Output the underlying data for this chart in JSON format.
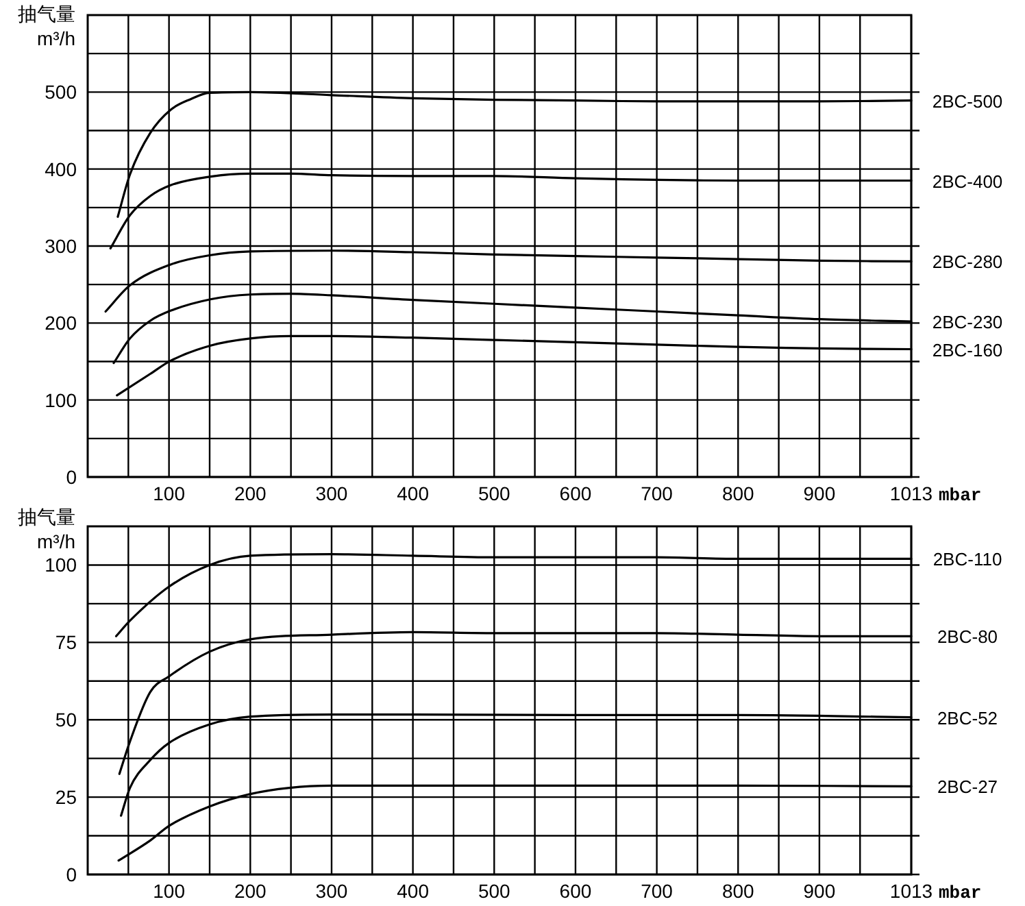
{
  "chart_data": [
    {
      "type": "line",
      "ylabel": "抽气量\nm³/h",
      "xlabel": "mbar",
      "xlim": [
        0,
        1013
      ],
      "ylim": [
        0,
        600
      ],
      "grid": true,
      "xticks": [
        {
          "value": 50,
          "label": null
        },
        100,
        {
          "value": 150,
          "label": null
        },
        200,
        {
          "value": 250,
          "label": null
        },
        300,
        {
          "value": 350,
          "label": null
        },
        400,
        {
          "value": 450,
          "label": null
        },
        500,
        {
          "value": 550,
          "label": null
        },
        600,
        {
          "value": 650,
          "label": null
        },
        700,
        {
          "value": 750,
          "label": null
        },
        800,
        {
          "value": 850,
          "label": null
        },
        900,
        {
          "value": 950,
          "label": null
        },
        1013
      ],
      "yticks": [
        0,
        {
          "value": 50,
          "label": null
        },
        100,
        {
          "value": 150,
          "label": null
        },
        200,
        {
          "value": 250,
          "label": null
        },
        300,
        {
          "value": 350,
          "label": null
        },
        400,
        {
          "value": 450,
          "label": null
        },
        500,
        {
          "value": 550,
          "label": null
        }
      ],
      "series": [
        {
          "name": "2BC-500",
          "color": "#000000",
          "x": [
            37,
            52,
            77,
            102,
            127,
            150,
            200,
            300,
            400,
            500,
            600,
            700,
            800,
            900,
            1013
          ],
          "values": [
            338,
            393,
            447,
            477,
            491,
            499,
            500,
            496,
            492,
            490,
            489,
            488,
            488,
            488,
            489
          ]
        },
        {
          "name": "2BC-400",
          "color": "#000000",
          "x": [
            28,
            52,
            77,
            102,
            150,
            200,
            250,
            300,
            400,
            500,
            600,
            700,
            800,
            900,
            1013
          ],
          "values": [
            297,
            340,
            365,
            379,
            390,
            394,
            394,
            392,
            391,
            391,
            388,
            386,
            385,
            385,
            385
          ]
        },
        {
          "name": "2BC-280",
          "color": "#000000",
          "x": [
            22,
            52,
            102,
            150,
            200,
            300,
            400,
            500,
            600,
            700,
            800,
            900,
            1013
          ],
          "values": [
            215,
            249,
            276,
            288,
            293,
            294,
            292,
            289,
            287,
            285,
            283,
            281,
            280
          ]
        },
        {
          "name": "2BC-230",
          "color": "#000000",
          "x": [
            32,
            52,
            77,
            102,
            152,
            200,
            250,
            300,
            400,
            500,
            600,
            700,
            800,
            900,
            1013
          ],
          "values": [
            148,
            180,
            203,
            216,
            231,
            237,
            238,
            236,
            230,
            225,
            220,
            215,
            210,
            205,
            202
          ]
        },
        {
          "name": "2BC-160",
          "color": "#000000",
          "x": [
            36,
            77,
            102,
            152,
            200,
            250,
            300,
            400,
            500,
            600,
            700,
            800,
            900,
            1013
          ],
          "values": [
            106,
            134,
            151,
            171,
            180,
            183,
            183,
            181,
            178,
            175,
            172,
            169,
            167,
            166
          ]
        }
      ]
    },
    {
      "type": "line",
      "ylabel": "抽气量\nm³/h",
      "xlabel": "mbar",
      "xlim": [
        0,
        1013
      ],
      "ylim": [
        0,
        112.5
      ],
      "grid": true,
      "xticks": [
        {
          "value": 50,
          "label": null
        },
        100,
        {
          "value": 150,
          "label": null
        },
        200,
        {
          "value": 250,
          "label": null
        },
        300,
        {
          "value": 350,
          "label": null
        },
        400,
        {
          "value": 450,
          "label": null
        },
        500,
        {
          "value": 550,
          "label": null
        },
        600,
        {
          "value": 650,
          "label": null
        },
        700,
        {
          "value": 750,
          "label": null
        },
        800,
        {
          "value": 850,
          "label": null
        },
        900,
        {
          "value": 950,
          "label": null
        },
        1013
      ],
      "yticks": [
        0,
        {
          "value": 12.5,
          "label": null
        },
        25,
        {
          "value": 37.5,
          "label": null
        },
        50,
        {
          "value": 62.5,
          "label": null
        },
        75,
        {
          "value": 87.5,
          "label": null
        },
        100
      ],
      "series": [
        {
          "name": "2BC-110",
          "color": "#000000",
          "x": [
            35,
            52,
            100,
            150,
            200,
            300,
            400,
            500,
            600,
            700,
            800,
            900,
            1013
          ],
          "values": [
            77,
            82,
            93,
            100,
            103,
            103.5,
            103,
            102.5,
            102.5,
            102.5,
            102,
            102,
            102
          ]
        },
        {
          "name": "2BC-80",
          "color": "#000000",
          "x": [
            39,
            52,
            77,
            100,
            150,
            200,
            300,
            400,
            500,
            600,
            700,
            800,
            900,
            1013
          ],
          "values": [
            32.5,
            43,
            59,
            64,
            72,
            76,
            77.5,
            78.3,
            78,
            78,
            78,
            77.5,
            77,
            77
          ]
        },
        {
          "name": "2BC-52",
          "color": "#000000",
          "x": [
            41,
            52,
            77,
            100,
            150,
            200,
            300,
            400,
            600,
            800,
            1013
          ],
          "values": [
            19,
            28,
            37,
            42.5,
            48.5,
            51,
            51.7,
            51.7,
            51.5,
            51.5,
            50.8
          ]
        },
        {
          "name": "2BC-27",
          "color": "#000000",
          "x": [
            38,
            77,
            100,
            150,
            200,
            248,
            300,
            400,
            600,
            800,
            1013
          ],
          "values": [
            4.5,
            11,
            15.7,
            22,
            26,
            28,
            28.7,
            28.7,
            28.7,
            28.7,
            28.5
          ]
        }
      ]
    }
  ]
}
